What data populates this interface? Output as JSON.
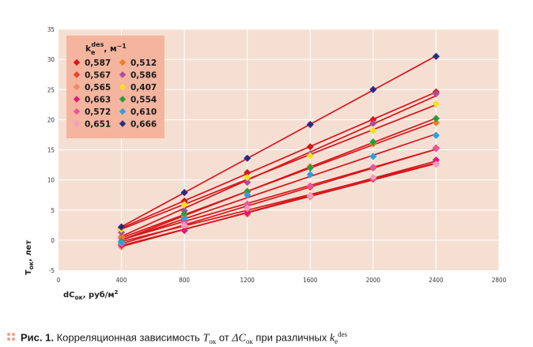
{
  "chart_data": {
    "type": "scatter-with-fit-lines",
    "title": "",
    "xlabel_main": "dC",
    "xlabel_sub": "ок",
    "xlabel_unit": ", руб/м",
    "xlabel_sup": "2",
    "ylabel_main": "T",
    "ylabel_sub": "ок",
    "ylabel_unit": ", лет",
    "xlim": [
      0,
      2800
    ],
    "ylim": [
      -5,
      35
    ],
    "x_ticks": [
      0,
      400,
      800,
      1200,
      1600,
      2000,
      2400,
      2800
    ],
    "y_ticks": [
      -5,
      0,
      5,
      10,
      15,
      20,
      25,
      30,
      35
    ],
    "grid": true,
    "fit_line_color": "#d7161c",
    "plot_bg": "#f5dfd3",
    "legend_bg": "#f4b49e",
    "legend_title_main": "k",
    "legend_title_sub": "e",
    "legend_title_sup": "des",
    "legend_title_unit": ", м",
    "legend_title_exp": "−1",
    "legend_position": "top-left",
    "x": [
      400,
      800,
      1200,
      1600,
      2000,
      2400
    ],
    "series": [
      {
        "name": "0,587",
        "color": "#d7161c",
        "values": [
          2.0,
          6.5,
          11.2,
          15.5,
          20.0,
          24.6
        ]
      },
      {
        "name": "0,567",
        "color": "#e5452a",
        "values": [
          -0.6,
          3.2,
          4.8,
          8.8,
          12.0,
          15.3
        ]
      },
      {
        "name": "0,565",
        "color": "#ef8866",
        "values": [
          -1.1,
          2.3,
          4.3,
          7.2,
          10.1,
          12.7
        ]
      },
      {
        "name": "0,663",
        "color": "#e01a78",
        "values": [
          -0.8,
          1.6,
          4.5,
          7.4,
          10.2,
          13.3
        ]
      },
      {
        "name": "0,572",
        "color": "#ea55a0",
        "values": [
          0.3,
          3.0,
          6.0,
          9.0,
          12.1,
          15.2
        ]
      },
      {
        "name": "0,651",
        "color": "#f49cc4",
        "values": [
          -0.5,
          2.5,
          5.3,
          7.4,
          10.4,
          12.6
        ]
      },
      {
        "name": "0,512",
        "color": "#ee7d1b",
        "values": [
          0.6,
          3.9,
          8.0,
          12.2,
          16.0,
          19.5
        ]
      },
      {
        "name": "0,586",
        "color": "#ab4f9a",
        "values": [
          1.3,
          4.9,
          9.6,
          14.3,
          19.4,
          24.3
        ]
      },
      {
        "name": "0,407",
        "color": "#f5e21a",
        "values": [
          1.8,
          5.9,
          10.4,
          14.0,
          18.2,
          22.6
        ]
      },
      {
        "name": "0,554",
        "color": "#2f9b3c",
        "values": [
          -0.2,
          4.4,
          8.1,
          12.0,
          16.3,
          20.2
        ]
      },
      {
        "name": "0,610",
        "color": "#2f9ede",
        "values": [
          -0.4,
          3.6,
          7.5,
          10.9,
          13.9,
          17.4
        ]
      },
      {
        "name": "0,666",
        "color": "#2a2c83",
        "values": [
          2.2,
          7.9,
          13.6,
          19.2,
          25.0,
          30.5
        ]
      }
    ]
  },
  "caption": {
    "label": "Рис. 1.",
    "text_1": " Корреляционная зависимость ",
    "t_var": "T",
    "t_sub": "ок",
    "text_2": " от ",
    "delta_var": "ΔC",
    "delta_sub": "ок",
    "text_3": " при различных ",
    "k_var": "k",
    "k_sub": "e",
    "k_sup": "des",
    "dots_color": "#f0a080"
  }
}
